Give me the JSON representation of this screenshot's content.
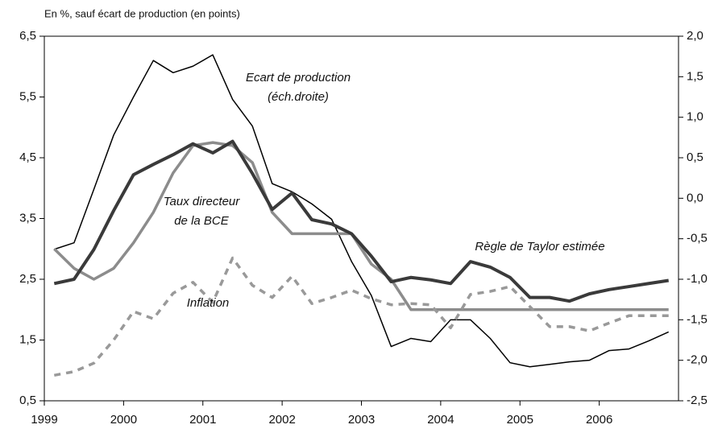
{
  "chart_data": {
    "type": "line",
    "subtitle": "En %, sauf écart de production (en points)",
    "x": [
      1999.125,
      1999.375,
      1999.625,
      1999.875,
      2000.125,
      2000.375,
      2000.625,
      2000.875,
      2001.125,
      2001.375,
      2001.625,
      2001.875,
      2002.125,
      2002.375,
      2002.625,
      2002.875,
      2003.125,
      2003.375,
      2003.625,
      2003.875,
      2004.125,
      2004.375,
      2004.625,
      2004.875,
      2005.125,
      2005.375,
      2005.625,
      2005.875,
      2006.125,
      2006.375,
      2006.625,
      2006.875
    ],
    "xlim": [
      1999,
      2007
    ],
    "xticks": [
      1999,
      2000,
      2001,
      2002,
      2003,
      2004,
      2005,
      2006
    ],
    "ylim": [
      0.5,
      6.5
    ],
    "yticks": [
      {
        "value": 0.5,
        "label": "0,5"
      },
      {
        "value": 1.5,
        "label": "1,5"
      },
      {
        "value": 2.5,
        "label": "2,5"
      },
      {
        "value": 3.5,
        "label": "3,5"
      },
      {
        "value": 4.5,
        "label": "4,5"
      },
      {
        "value": 5.5,
        "label": "5,5"
      },
      {
        "value": 6.5,
        "label": "6,5"
      }
    ],
    "y2lim": [
      -2.5,
      2.0
    ],
    "y2ticks": [
      {
        "value": -2.5,
        "label": "-2,5"
      },
      {
        "value": -2.0,
        "label": "-2,0"
      },
      {
        "value": -1.5,
        "label": "-1,5"
      },
      {
        "value": -1.0,
        "label": "-1,0"
      },
      {
        "value": -0.5,
        "label": "-0,5"
      },
      {
        "value": 0.0,
        "label": "0,0"
      },
      {
        "value": 0.5,
        "label": "0,5"
      },
      {
        "value": 1.0,
        "label": "1,0"
      },
      {
        "value": 1.5,
        "label": "1,5"
      },
      {
        "value": 2.0,
        "label": "2,0"
      }
    ],
    "series": [
      {
        "label": [
          "Ecart de production",
          "(éch.droite)"
        ],
        "color": "#000000",
        "axis": "y2",
        "values": [
          -0.63,
          -0.55,
          0.11,
          0.78,
          1.25,
          1.7,
          1.55,
          1.63,
          1.77,
          1.22,
          0.89,
          0.18,
          0.08,
          -0.07,
          -0.26,
          -0.78,
          -1.2,
          -1.83,
          -1.73,
          -1.77,
          -1.5,
          -1.5,
          -1.73,
          -2.03,
          -2.08,
          -2.05,
          -2.02,
          -2.0,
          -1.88,
          -1.86,
          -1.76,
          -1.65
        ]
      },
      {
        "label": [
          "Taux directeur",
          "de la BCE"
        ],
        "color": "#8c8c8c",
        "values": [
          3.0,
          2.68,
          2.5,
          2.68,
          3.1,
          3.6,
          4.25,
          4.7,
          4.75,
          4.7,
          4.42,
          3.6,
          3.25,
          3.25,
          3.25,
          3.25,
          2.75,
          2.5,
          2.0,
          2.0,
          2.0,
          2.0,
          2.0,
          2.0,
          2.0,
          2.0,
          2.0,
          2.0,
          2.0,
          2.0,
          2.0,
          2.0
        ]
      },
      {
        "label": [
          "Règle de Taylor estimée"
        ],
        "color": "#3a3a3a",
        "values": [
          2.43,
          2.5,
          2.99,
          3.63,
          4.22,
          4.39,
          4.55,
          4.73,
          4.58,
          4.77,
          4.24,
          3.65,
          3.92,
          3.48,
          3.41,
          3.25,
          2.88,
          2.46,
          2.53,
          2.49,
          2.43,
          2.79,
          2.7,
          2.53,
          2.2,
          2.2,
          2.14,
          2.26,
          2.33,
          2.38,
          2.43,
          2.48
        ]
      },
      {
        "label": [
          "Inflation"
        ],
        "color": "#999999",
        "dashed": true,
        "values": [
          0.92,
          0.98,
          1.12,
          1.5,
          1.97,
          1.85,
          2.27,
          2.45,
          2.12,
          2.85,
          2.4,
          2.2,
          2.55,
          2.1,
          2.2,
          2.32,
          2.18,
          2.08,
          2.1,
          2.08,
          1.7,
          2.25,
          2.3,
          2.38,
          2.05,
          1.72,
          1.72,
          1.65,
          1.78,
          1.9,
          1.9,
          1.9
        ]
      }
    ]
  }
}
